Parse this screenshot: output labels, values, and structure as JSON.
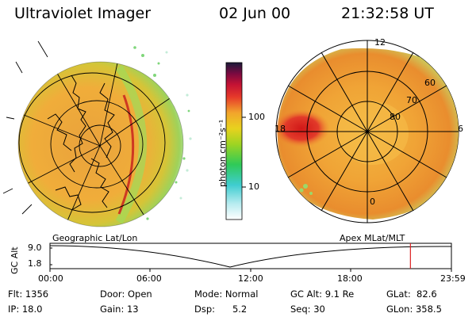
{
  "header": {
    "instrument": "Ultraviolet Imager",
    "date": "02 Jun 00",
    "time": "21:32:58 UT"
  },
  "colorbar": {
    "unit": "photon cm⁻²s⁻¹",
    "tick_labels": [
      "100",
      "10"
    ]
  },
  "left_panel": {
    "caption": "Geographic Lat/Lon"
  },
  "right_panel": {
    "caption": "Apex MLat/MLT",
    "mlt_labels": [
      "12",
      "18",
      "6",
      "0"
    ],
    "mlat_labels": [
      "60",
      "70",
      "80"
    ]
  },
  "altitude_plot": {
    "axis_label": "GC Alt",
    "y_ticks": [
      "9.0",
      "1.8"
    ],
    "x_ticks": [
      "00:00",
      "06:00",
      "12:00",
      "18:00",
      "23:59"
    ],
    "marker_time_hours": 21.55
  },
  "status": {
    "flt": "Flt: 1356",
    "ip": "IP: 18.0",
    "door": "Door: Open",
    "gain": "Gain: 13",
    "mode": "Mode: Normal",
    "dsp": "Dsp:      5.2",
    "gc_alt": "GC Alt: 9.1 Re",
    "seq": "Seq: 30",
    "glat": "GLat:  82.6",
    "glon": "GLon: 358.5"
  },
  "colors": {
    "marker": "#dd2222",
    "grid": "#000000"
  }
}
